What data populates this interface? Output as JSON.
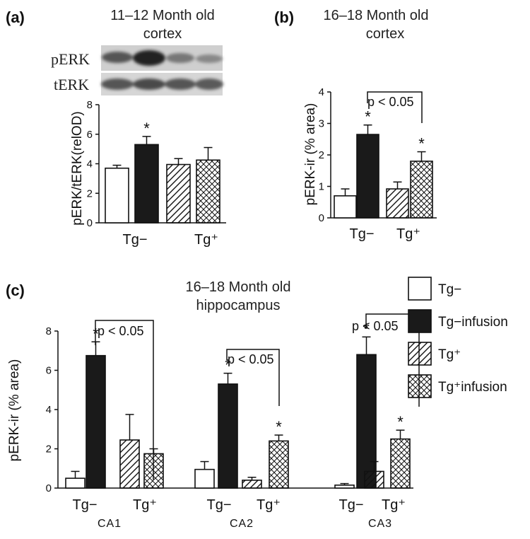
{
  "colors": {
    "tg_minus": "#ffffff",
    "tg_minus_infusion": "#1a1a1a",
    "stroke": "#111111"
  },
  "legend": {
    "items": [
      {
        "label": "Tg−",
        "style": "open"
      },
      {
        "label": "Tg−infusion",
        "style": "solid"
      },
      {
        "label": "Tg⁺",
        "style": "hatch"
      },
      {
        "label": "Tg⁺infusion",
        "style": "cross"
      }
    ]
  },
  "chart_data": [
    {
      "panel": "(a)",
      "type": "bar",
      "title": "11–12 Month old",
      "subtitle": "cortex",
      "ylabel": "pERK/tERK(relOD)",
      "ylim": [
        0,
        8
      ],
      "yticks": [
        0,
        2,
        4,
        6,
        8
      ],
      "groups": [
        "Tg−",
        "Tg⁺"
      ],
      "series": [
        "open",
        "solid",
        "hatch",
        "cross"
      ],
      "values": [
        3.7,
        5.3,
        3.95,
        4.25
      ],
      "errors": [
        0.2,
        0.55,
        0.4,
        0.85
      ],
      "stars": [
        false,
        true,
        false,
        false
      ],
      "blot_labels": [
        "pERK",
        "tERK"
      ]
    },
    {
      "panel": "(b)",
      "type": "bar",
      "title": "16–18 Month old",
      "subtitle": "cortex",
      "ylabel": "pERK-ir (% area)",
      "ylim": [
        0,
        4
      ],
      "yticks": [
        0,
        1,
        2,
        3,
        4
      ],
      "groups": [
        "Tg−",
        "Tg⁺"
      ],
      "series": [
        "open",
        "solid",
        "hatch",
        "cross"
      ],
      "values": [
        0.7,
        2.65,
        0.92,
        1.8
      ],
      "errors": [
        0.22,
        0.3,
        0.22,
        0.3
      ],
      "stars": [
        false,
        true,
        false,
        true
      ],
      "significance": "p < 0.05"
    },
    {
      "panel": "(c)",
      "type": "bar",
      "title": "16–18 Month old",
      "subtitle": "hippocampus",
      "ylabel": "pERK-ir (% area)",
      "ylim": [
        0,
        8
      ],
      "yticks": [
        0,
        2,
        4,
        6,
        8
      ],
      "regions": [
        {
          "name": "CA1",
          "groups": [
            "Tg−",
            "Tg⁺"
          ],
          "values": [
            0.5,
            6.75,
            2.45,
            1.75
          ],
          "errors": [
            0.35,
            0.7,
            1.3,
            0.25
          ],
          "stars": [
            false,
            true,
            false,
            false
          ]
        },
        {
          "name": "CA2",
          "groups": [
            "Tg−",
            "Tg⁺"
          ],
          "values": [
            0.95,
            5.3,
            0.4,
            2.4
          ],
          "errors": [
            0.4,
            0.55,
            0.15,
            0.3
          ],
          "stars": [
            false,
            true,
            false,
            true
          ]
        },
        {
          "name": "CA3",
          "groups": [
            "Tg−",
            "Tg⁺"
          ],
          "values": [
            0.15,
            6.8,
            0.85,
            2.5
          ],
          "errors": [
            0.08,
            0.9,
            0.5,
            0.45
          ],
          "stars": [
            false,
            true,
            false,
            true
          ]
        }
      ],
      "significance": "p < 0.05"
    }
  ]
}
